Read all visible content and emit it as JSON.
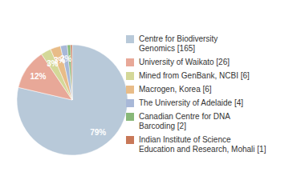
{
  "chart_data": {
    "type": "pie",
    "categories": [
      "Centre for Biodiversity\nGenomics [165]",
      "University of Waikato [26]",
      "Mined from GenBank, NCBI [6]",
      "Macrogen, Korea [6]",
      "The University of Adelaide [4]",
      "Canadian Centre for DNA\nBarcoding [2]",
      "Indian Institute of Science\nEducation and Research, Mohali [1]"
    ],
    "values": [
      79,
      12,
      3,
      3,
      2,
      0.95,
      0.48
    ],
    "value_labels": [
      "79%",
      "12%",
      "3%",
      "3%",
      "2%",
      null,
      null
    ],
    "colors": [
      "#b8c9d9",
      "#e8a898",
      "#d4d898",
      "#e8bc88",
      "#a8b8d8",
      "#88b878",
      "#c87858"
    ],
    "data_labels": true,
    "legend": "right"
  }
}
